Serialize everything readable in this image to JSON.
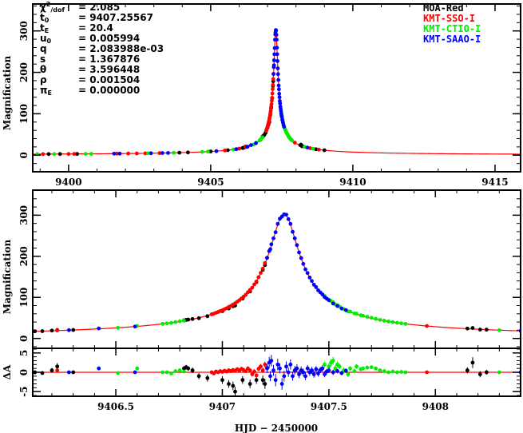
{
  "chart_data": {
    "type": "scatter",
    "params": [
      {
        "label": "χ",
        "sup": "2",
        "sub": "/dof",
        "value": "= 2.085"
      },
      {
        "label": "t",
        "sup": "",
        "sub": "0",
        "value": "= 9407.25567"
      },
      {
        "label": "t",
        "sup": "",
        "sub": "E",
        "value": "= 20.4"
      },
      {
        "label": "u",
        "sup": "",
        "sub": "0",
        "value": "= 0.005994"
      },
      {
        "label": "q",
        "sup": "",
        "sub": "",
        "value": "= 2.083988e-03"
      },
      {
        "label": "s",
        "sup": "",
        "sub": "",
        "value": "= 1.367876"
      },
      {
        "label": "θ",
        "sup": "",
        "sub": "",
        "value": "= 3.596448"
      },
      {
        "label": "ρ",
        "sup": "",
        "sub": "",
        "value": "= 0.001504"
      },
      {
        "label": "π",
        "sup": "",
        "sub": "E",
        "value": "= 0.000000"
      }
    ],
    "legend": [
      {
        "name": "MOA-Red",
        "color": "#000000"
      },
      {
        "name": "KMT-SSO-I",
        "color": "#ff0000"
      },
      {
        "name": "KMT-CTIO-I",
        "color": "#00ee00"
      },
      {
        "name": "KMT-SAAO-I",
        "color": "#0000ff"
      }
    ],
    "model": {
      "t_peak": 9407.29,
      "u_eff": 0.0033,
      "tE": 20.4,
      "color": "#ff0000"
    },
    "panels": {
      "top": {
        "ylabel": "Magnification",
        "xlim": [
          9398.74,
          9415.9
        ],
        "ylim": [
          -40,
          365
        ],
        "xticks": [
          "9400",
          "9405",
          "9410",
          "9415"
        ],
        "yticks": [
          "0",
          "100",
          "200",
          "300"
        ]
      },
      "middle": {
        "ylabel": "Magnification",
        "xlim": [
          9406.11,
          9408.4
        ],
        "ylim": [
          -24,
          361
        ],
        "yticks": [
          "0",
          "100",
          "200",
          "300"
        ]
      },
      "residual": {
        "ylabel": "ΔA",
        "xlim": [
          9406.11,
          9408.4
        ],
        "ylim": [
          -6.2,
          6.2
        ],
        "yticks": [
          "-5",
          "0",
          "5"
        ],
        "xticks": [
          "9406.5",
          "9407",
          "9407.5",
          "9408"
        ]
      }
    },
    "xlabel": "HJD − 2450000",
    "series": [
      {
        "name": "MOA-Red",
        "color": "#000000",
        "points": [
          [
            9399.3,
            0,
            0
          ],
          [
            9399.7,
            0,
            0
          ],
          [
            9400.3,
            0,
            0
          ],
          [
            9403.9,
            0,
            0
          ],
          [
            9404.2,
            0,
            0
          ],
          [
            9405.0,
            0,
            0
          ],
          [
            9405.6,
            0,
            0
          ],
          [
            9406.3,
            0,
            0
          ],
          [
            9408.7,
            0,
            0
          ],
          [
            9409.0,
            0,
            0
          ],
          [
            9406.12,
            0,
            0.5
          ],
          [
            9406.155,
            -0.2,
            0.5
          ],
          [
            9406.2,
            0.5,
            0.6
          ],
          [
            9406.225,
            1.5,
            0.9
          ],
          [
            9406.82,
            1,
            0.6
          ],
          [
            9406.83,
            1.3,
            0.6
          ],
          [
            9406.84,
            1.0,
            0.6
          ],
          [
            9406.86,
            0.5,
            0.7
          ],
          [
            9406.89,
            -1,
            0.8
          ],
          [
            9406.93,
            -1.5,
            0.9
          ],
          [
            9407.0,
            -2,
            1
          ],
          [
            9407.03,
            -3,
            1
          ],
          [
            9407.05,
            -3.5,
            1.1
          ],
          [
            9407.06,
            -5,
            1.2
          ],
          [
            9407.095,
            -2,
            1
          ],
          [
            9407.13,
            -3,
            1.1
          ],
          [
            9407.16,
            -2,
            1
          ],
          [
            9407.19,
            -2,
            1.2
          ],
          [
            9407.2,
            -3,
            1.3
          ],
          [
            9408.15,
            0.5,
            0.8
          ],
          [
            9408.175,
            2.5,
            1.4
          ],
          [
            9408.21,
            -0.5,
            0.8
          ],
          [
            9408.24,
            0,
            0.6
          ]
        ]
      },
      {
        "name": "KMT-SSO-I",
        "color": "#ff0000",
        "points": [
          [
            9399.1,
            0,
            0
          ],
          [
            9400.0,
            0,
            0
          ],
          [
            9400.2,
            0,
            0
          ],
          [
            9401.7,
            0,
            0
          ],
          [
            9402.1,
            0,
            0
          ],
          [
            9402.4,
            0,
            0
          ],
          [
            9402.7,
            0,
            0
          ],
          [
            9403.2,
            0,
            0
          ],
          [
            9405.5,
            0,
            0
          ],
          [
            9406.0,
            0,
            0
          ],
          [
            9408.5,
            0,
            0
          ],
          [
            9408.8,
            0,
            0
          ],
          [
            9406.225,
            0.5,
            0.3
          ],
          [
            9406.95,
            0,
            0.3
          ],
          [
            9406.96,
            -0.3,
            0.3
          ],
          [
            9406.97,
            0.2,
            0.3
          ],
          [
            9406.98,
            0,
            0.3
          ],
          [
            9406.99,
            0.3,
            0.3
          ],
          [
            9407.0,
            0.1,
            0.3
          ],
          [
            9407.01,
            0.4,
            0.3
          ],
          [
            9407.02,
            0.2,
            0.3
          ],
          [
            9407.03,
            0.5,
            0.4
          ],
          [
            9407.04,
            0.3,
            0.4
          ],
          [
            9407.05,
            0.6,
            0.4
          ],
          [
            9407.06,
            0.4,
            0.4
          ],
          [
            9407.07,
            0.8,
            0.4
          ],
          [
            9407.08,
            0.5,
            0.4
          ],
          [
            9407.09,
            0.9,
            0.5
          ],
          [
            9407.1,
            0.6,
            0.5
          ],
          [
            9407.11,
            0.3,
            0.5
          ],
          [
            9407.12,
            1.0,
            0.5
          ],
          [
            9407.13,
            0.5,
            0.5
          ],
          [
            9407.14,
            -0.5,
            0.6
          ],
          [
            9407.15,
            0.2,
            0.6
          ],
          [
            9407.16,
            -0.8,
            0.6
          ],
          [
            9407.17,
            0.9,
            0.6
          ],
          [
            9407.18,
            1.5,
            0.7
          ],
          [
            9407.19,
            0.5,
            0.7
          ],
          [
            9407.2,
            2.0,
            0.8
          ],
          [
            9407.21,
            1.2,
            0.8
          ],
          [
            9407.96,
            0,
            0.3
          ]
        ]
      },
      {
        "name": "KMT-CTIO-I",
        "color": "#00ee00",
        "points": [
          [
            9398.9,
            0,
            0
          ],
          [
            9399.5,
            0,
            0
          ],
          [
            9400.6,
            0,
            0
          ],
          [
            9400.8,
            0,
            0
          ],
          [
            9402.8,
            0,
            0
          ],
          [
            9403.7,
            0,
            0
          ],
          [
            9404.7,
            0,
            0
          ],
          [
            9404.9,
            0,
            0
          ],
          [
            9405.8,
            0,
            0
          ],
          [
            9408.3,
            0,
            0
          ],
          [
            9408.6,
            0,
            0
          ],
          [
            9406.51,
            -0.2,
            0.3
          ],
          [
            9406.6,
            1,
            0.4
          ],
          [
            9406.72,
            0,
            0.3
          ],
          [
            9406.74,
            0,
            0.3
          ],
          [
            9406.76,
            -0.3,
            0.3
          ],
          [
            9406.78,
            0.3,
            0.3
          ],
          [
            9406.8,
            0.5,
            0.3
          ],
          [
            9406.82,
            0.2,
            0.3
          ],
          [
            9407.48,
            2,
            0.8
          ],
          [
            9407.5,
            1.5,
            0.8
          ],
          [
            9407.51,
            2.5,
            0.9
          ],
          [
            9407.52,
            3,
            1
          ],
          [
            9407.53,
            1,
            0.8
          ],
          [
            9407.54,
            2,
            0.8
          ],
          [
            9407.55,
            1.5,
            0.7
          ],
          [
            9407.57,
            0.5,
            0.7
          ],
          [
            9407.59,
            -0.5,
            0.7
          ],
          [
            9407.6,
            1,
            0.6
          ],
          [
            9407.62,
            0.3,
            0.6
          ],
          [
            9407.63,
            1.5,
            0.6
          ],
          [
            9407.65,
            0.8,
            0.5
          ],
          [
            9407.66,
            1,
            0.5
          ],
          [
            9407.68,
            1.2,
            0.5
          ],
          [
            9407.7,
            1.3,
            0.5
          ],
          [
            9407.72,
            1,
            0.4
          ],
          [
            9407.74,
            0.5,
            0.4
          ],
          [
            9407.76,
            0.3,
            0.4
          ],
          [
            9407.78,
            0,
            0.3
          ],
          [
            9407.8,
            0.2,
            0.3
          ],
          [
            9407.82,
            0,
            0.3
          ],
          [
            9407.84,
            0.1,
            0.3
          ],
          [
            9407.86,
            0,
            0.3
          ]
        ]
      },
      {
        "name": "KMT-SAAO-I",
        "color": "#0000ff",
        "points": [
          [
            9401.6,
            0,
            0
          ],
          [
            9401.8,
            0,
            0
          ],
          [
            9402.9,
            0,
            0
          ],
          [
            9403.3,
            0,
            0
          ],
          [
            9403.5,
            0,
            0
          ],
          [
            9405.2,
            0,
            0
          ],
          [
            9405.9,
            0,
            0
          ],
          [
            9408.4,
            0,
            0
          ],
          [
            9406.28,
            0,
            0.3
          ],
          [
            9406.42,
            1,
            0.3
          ],
          [
            9406.59,
            0,
            0.3
          ],
          [
            9407.21,
            1,
            1.2
          ],
          [
            9407.22,
            2.5,
            1.5
          ],
          [
            9407.225,
            -1,
            1.3
          ],
          [
            9407.23,
            3,
            1.5
          ],
          [
            9407.24,
            0.5,
            1.4
          ],
          [
            9407.25,
            -2,
            1.6
          ],
          [
            9407.26,
            2,
            1.5
          ],
          [
            9407.27,
            1,
            1.3
          ],
          [
            9407.28,
            -3,
            1.5
          ],
          [
            9407.29,
            -1,
            1.4
          ],
          [
            9407.3,
            1.5,
            1.3
          ],
          [
            9407.31,
            0,
            1.2
          ],
          [
            9407.32,
            2,
            1.3
          ],
          [
            9407.33,
            -1,
            1.2
          ],
          [
            9407.34,
            0.5,
            1.1
          ],
          [
            9407.35,
            1,
            1.1
          ],
          [
            9407.36,
            -0.5,
            1
          ],
          [
            9407.37,
            0.5,
            1
          ],
          [
            9407.38,
            0,
            1
          ],
          [
            9407.39,
            -1,
            1
          ],
          [
            9407.4,
            1,
            0.9
          ],
          [
            9407.41,
            0,
            0.9
          ],
          [
            9407.42,
            0.5,
            0.9
          ],
          [
            9407.43,
            -0.5,
            0.9
          ],
          [
            9407.44,
            0.8,
            0.8
          ],
          [
            9407.45,
            -0.3,
            0.8
          ],
          [
            9407.46,
            0.6,
            0.8
          ],
          [
            9407.47,
            1,
            0.8
          ],
          [
            9407.48,
            -0.5,
            0.8
          ],
          [
            9407.49,
            0.2,
            0.7
          ],
          [
            9407.5,
            0.5,
            0.7
          ],
          [
            9407.52,
            0,
            0.7
          ],
          [
            9407.54,
            0.3,
            0.6
          ],
          [
            9407.56,
            -0.2,
            0.6
          ],
          [
            9407.58,
            0.4,
            0.6
          ]
        ]
      }
    ]
  }
}
